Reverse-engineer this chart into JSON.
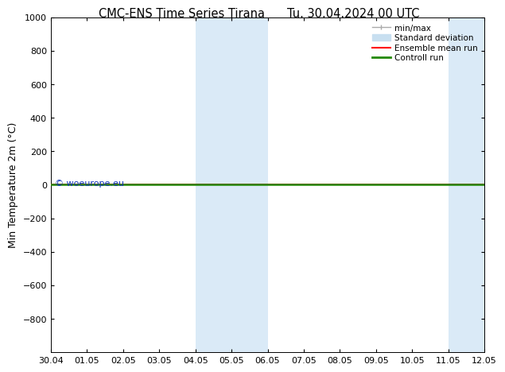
{
  "title_left": "CMC-ENS Time Series Tirana",
  "title_right": "Tu. 30.04.2024 00 UTC",
  "ylabel": "Min Temperature 2m (°C)",
  "ylim": [
    -1000,
    1000
  ],
  "yticks": [
    -800,
    -600,
    -400,
    -200,
    0,
    200,
    400,
    600,
    800,
    1000
  ],
  "xtick_labels": [
    "30.04",
    "01.05",
    "02.05",
    "03.05",
    "04.05",
    "05.05",
    "06.05",
    "07.05",
    "08.05",
    "09.05",
    "10.05",
    "11.05",
    "12.05"
  ],
  "shaded_regions": [
    {
      "start": 4,
      "end": 6
    },
    {
      "start": 11,
      "end": 12
    }
  ],
  "shaded_color": "#daeaf7",
  "ensemble_mean_color": "#ff0000",
  "control_run_color": "#228800",
  "minmax_color": "#aaaaaa",
  "stddev_color": "#c8dff0",
  "watermark": "© woeurope.eu",
  "watermark_color": "#1133bb",
  "legend_entries": [
    {
      "label": "min/max",
      "color": "#aaaaaa",
      "lw": 1.0
    },
    {
      "label": "Standard deviation",
      "color": "#c8dff0",
      "lw": 6
    },
    {
      "label": "Ensemble mean run",
      "color": "#ff0000",
      "lw": 1.5
    },
    {
      "label": "Controll run",
      "color": "#228800",
      "lw": 2
    }
  ],
  "background_color": "#ffffff",
  "title_fontsize": 10.5,
  "axis_label_fontsize": 9,
  "tick_fontsize": 8,
  "legend_fontsize": 7.5
}
